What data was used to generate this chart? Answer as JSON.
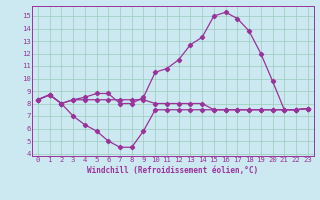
{
  "xlabel": "Windchill (Refroidissement éolien,°C)",
  "bg_color": "#cce8f0",
  "line_color": "#993399",
  "grid_color": "#99ccbb",
  "xlim": [
    -0.5,
    23.5
  ],
  "ylim": [
    3.8,
    15.8
  ],
  "xticks": [
    0,
    1,
    2,
    3,
    4,
    5,
    6,
    7,
    8,
    9,
    10,
    11,
    12,
    13,
    14,
    15,
    16,
    17,
    18,
    19,
    20,
    21,
    22,
    23
  ],
  "yticks": [
    4,
    5,
    6,
    7,
    8,
    9,
    10,
    11,
    12,
    13,
    14,
    15
  ],
  "series1_x": [
    0,
    1,
    2,
    3,
    4,
    5,
    6,
    7,
    8,
    9,
    10,
    11,
    12,
    13,
    14,
    15,
    16,
    17,
    18,
    19,
    20,
    21,
    22,
    23
  ],
  "series1_y": [
    8.3,
    8.7,
    8.0,
    8.3,
    8.3,
    8.3,
    8.3,
    8.3,
    8.3,
    8.3,
    8.0,
    8.0,
    8.0,
    8.0,
    8.0,
    7.5,
    7.5,
    7.5,
    7.5,
    7.5,
    7.5,
    7.5,
    7.5,
    7.6
  ],
  "series2_x": [
    0,
    1,
    2,
    3,
    4,
    5,
    6,
    7,
    8,
    9,
    10,
    11,
    12,
    13,
    14,
    15,
    16,
    17,
    18,
    19,
    20,
    21,
    22,
    23
  ],
  "series2_y": [
    8.3,
    8.7,
    8.0,
    7.0,
    6.3,
    5.8,
    5.0,
    4.5,
    4.5,
    5.8,
    7.5,
    7.5,
    7.5,
    7.5,
    7.5,
    7.5,
    7.5,
    7.5,
    7.5,
    7.5,
    7.5,
    7.5,
    7.5,
    7.6
  ],
  "series3_x": [
    0,
    1,
    2,
    3,
    4,
    5,
    6,
    7,
    8,
    9,
    10,
    11,
    12,
    13,
    14,
    15,
    16,
    17,
    18,
    19,
    20,
    21,
    22,
    23
  ],
  "series3_y": [
    8.3,
    8.7,
    8.0,
    8.3,
    8.5,
    8.8,
    8.8,
    8.0,
    8.0,
    8.5,
    10.5,
    10.8,
    11.5,
    12.7,
    13.3,
    15.0,
    15.3,
    14.8,
    13.8,
    12.0,
    9.8,
    7.5,
    7.5,
    7.6
  ],
  "xlabel_fontsize": 5.5,
  "tick_labelsize": 5.2,
  "linewidth": 0.9,
  "markersize": 2.2
}
